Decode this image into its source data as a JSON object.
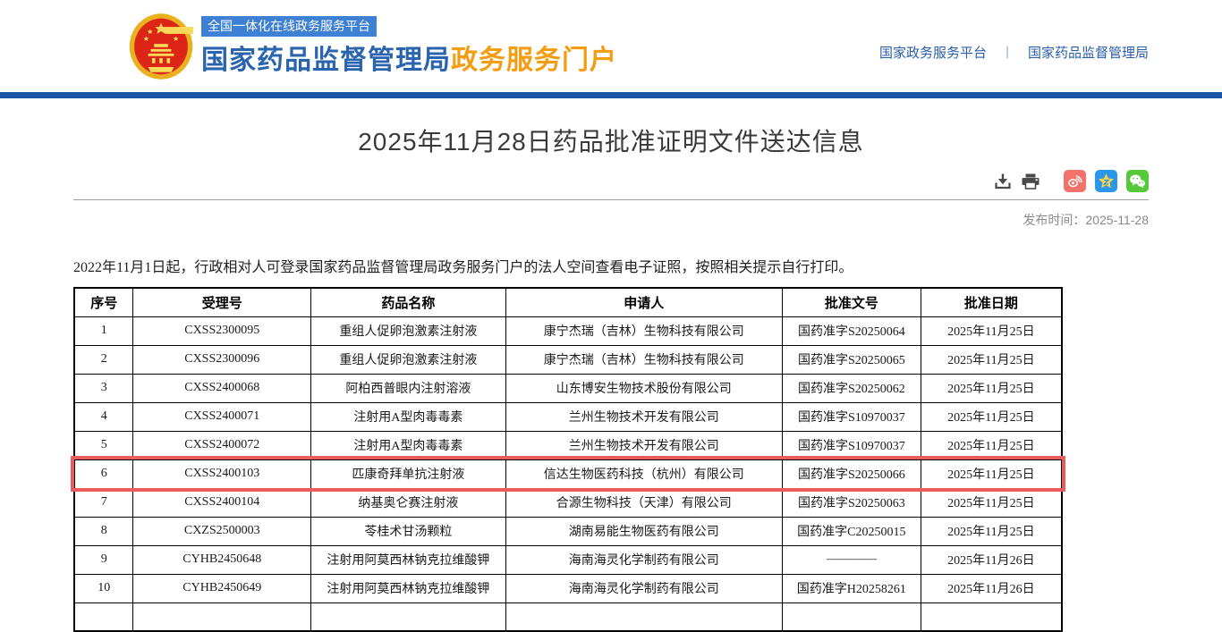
{
  "header": {
    "badge": "全国一体化在线政务服务平台",
    "site_title": "国家药品监督管理局",
    "site_subtitle": "政务服务门户",
    "nav_links": [
      {
        "label": "国家政务服务平台"
      },
      {
        "label": "国家药品监督管理局"
      }
    ],
    "nav_divider": "｜"
  },
  "article": {
    "title": "2025年11月28日药品批准证明文件送达信息",
    "publish_label": "发布时间：",
    "publish_date": "2025-11-28",
    "intro": "2022年11月1日起，行政相对人可登录国家药品监督管理局政务服务门户的法人空间查看电子证照，按照相关提示自行打印。",
    "toolbar_icons": [
      "download-icon",
      "print-icon",
      "weibo-share-icon",
      "qzone-share-icon",
      "wechat-share-icon"
    ]
  },
  "table": {
    "headers": [
      "序号",
      "受理号",
      "药品名称",
      "申请人",
      "批准文号",
      "批准日期"
    ],
    "rows": [
      {
        "cells": [
          "1",
          "CXSS2300095",
          "重组人促卵泡激素注射液",
          "康宁杰瑞（吉林）生物科技有限公司",
          "国药准字S20250064",
          "2025年11月25日"
        ],
        "highlight": false
      },
      {
        "cells": [
          "2",
          "CXSS2300096",
          "重组人促卵泡激素注射液",
          "康宁杰瑞（吉林）生物科技有限公司",
          "国药准字S20250065",
          "2025年11月25日"
        ],
        "highlight": false
      },
      {
        "cells": [
          "3",
          "CXSS2400068",
          "阿柏西普眼内注射溶液",
          "山东博安生物技术股份有限公司",
          "国药准字S20250062",
          "2025年11月25日"
        ],
        "highlight": false
      },
      {
        "cells": [
          "4",
          "CXSS2400071",
          "注射用A型肉毒毒素",
          "兰州生物技术开发有限公司",
          "国药准字S10970037",
          "2025年11月25日"
        ],
        "highlight": false
      },
      {
        "cells": [
          "5",
          "CXSS2400072",
          "注射用A型肉毒毒素",
          "兰州生物技术开发有限公司",
          "国药准字S10970037",
          "2025年11月25日"
        ],
        "highlight": false
      },
      {
        "cells": [
          "6",
          "CXSS2400103",
          "匹康奇拜单抗注射液",
          "信达生物医药科技（杭州）有限公司",
          "国药准字S20250066",
          "2025年11月25日"
        ],
        "highlight": true
      },
      {
        "cells": [
          "7",
          "CXSS2400104",
          "纳基奥仑赛注射液",
          "合源生物科技（天津）有限公司",
          "国药准字S20250063",
          "2025年11月25日"
        ],
        "highlight": false
      },
      {
        "cells": [
          "8",
          "CXZS2500003",
          "苓桂术甘汤颗粒",
          "湖南易能生物医药有限公司",
          "国药准字C20250015",
          "2025年11月25日"
        ],
        "highlight": false
      },
      {
        "cells": [
          "9",
          "CYHB2450648",
          "注射用阿莫西林钠克拉维酸钾",
          "海南海灵化学制药有限公司",
          "————",
          "2025年11月26日"
        ],
        "highlight": false
      },
      {
        "cells": [
          "10",
          "CYHB2450649",
          "注射用阿莫西林钠克拉维酸钾",
          "海南海灵化学制药有限公司",
          "国药准字H20258261",
          "2025年11月26日"
        ],
        "highlight": false
      },
      {
        "cells": [
          "",
          "",
          "",
          "",
          "",
          ""
        ],
        "highlight": false
      }
    ]
  },
  "colors": {
    "brand_blue": "#2a64ae",
    "brand_orange": "#f49c12",
    "badge_blue": "#3e81d4",
    "top_bar_blue": "#1d55a5",
    "highlight_red": "#ea5b5e",
    "weibo_red": "#f3736c",
    "qzone_blue": "#2b97ea",
    "wechat_green": "#57c838"
  }
}
